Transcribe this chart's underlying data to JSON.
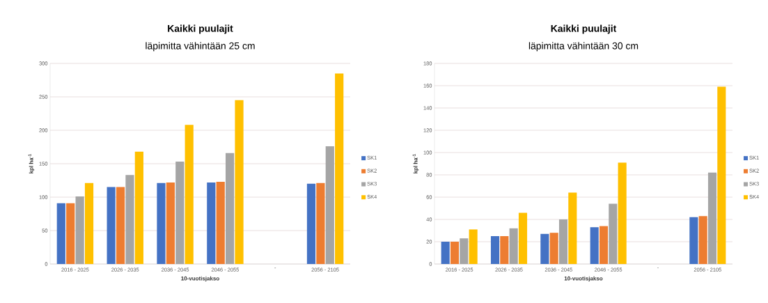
{
  "chart_data": [
    {
      "type": "bar",
      "title": "Kaikki puulajit",
      "subtitle": "läpimitta vähintään 25 cm",
      "xlabel": "10-vuotisjakso",
      "ylabel": "kpl ha$^{-1}$",
      "categories": [
        "2016 - 2025",
        "2026 - 2035",
        "2036 - 2045",
        "2046 - 2055",
        "-",
        "2056 - 2105"
      ],
      "series": [
        {
          "name": "SK1",
          "color": "#4472c4",
          "values": [
            91,
            115,
            121,
            122,
            null,
            120
          ]
        },
        {
          "name": "SK2",
          "color": "#ed7d31",
          "values": [
            91,
            115,
            122,
            123,
            null,
            121
          ]
        },
        {
          "name": "SK3",
          "color": "#a5a5a5",
          "values": [
            101,
            133,
            153,
            166,
            null,
            176
          ]
        },
        {
          "name": "SK4",
          "color": "#ffc000",
          "values": [
            121,
            168,
            208,
            245,
            null,
            285
          ]
        }
      ],
      "ylim": [
        0,
        300
      ],
      "yticks": [
        0,
        50,
        100,
        150,
        200,
        250,
        300
      ],
      "grid": "y",
      "legend": "right"
    },
    {
      "type": "bar",
      "title": "Kaikki puulajit",
      "subtitle": "läpimitta vähintään 30 cm",
      "xlabel": "10-vuotisjakso",
      "ylabel": "kpl ha$^{-1}$",
      "categories": [
        "2016 - 2025",
        "2026 - 2035",
        "2036 - 2045",
        "2046 - 2055",
        "-",
        "2056 - 2105"
      ],
      "series": [
        {
          "name": "SK1",
          "color": "#4472c4",
          "values": [
            20,
            25,
            27,
            33,
            null,
            42
          ]
        },
        {
          "name": "SK2",
          "color": "#ed7d31",
          "values": [
            20,
            25,
            28,
            34,
            null,
            43
          ]
        },
        {
          "name": "SK3",
          "color": "#a5a5a5",
          "values": [
            23,
            32,
            40,
            54,
            null,
            82
          ]
        },
        {
          "name": "SK4",
          "color": "#ffc000",
          "values": [
            31,
            46,
            64,
            91,
            null,
            159
          ]
        }
      ],
      "ylim": [
        0,
        180
      ],
      "yticks": [
        0,
        20,
        40,
        60,
        80,
        100,
        120,
        140,
        160,
        180
      ],
      "grid": "y",
      "legend": "right"
    }
  ]
}
